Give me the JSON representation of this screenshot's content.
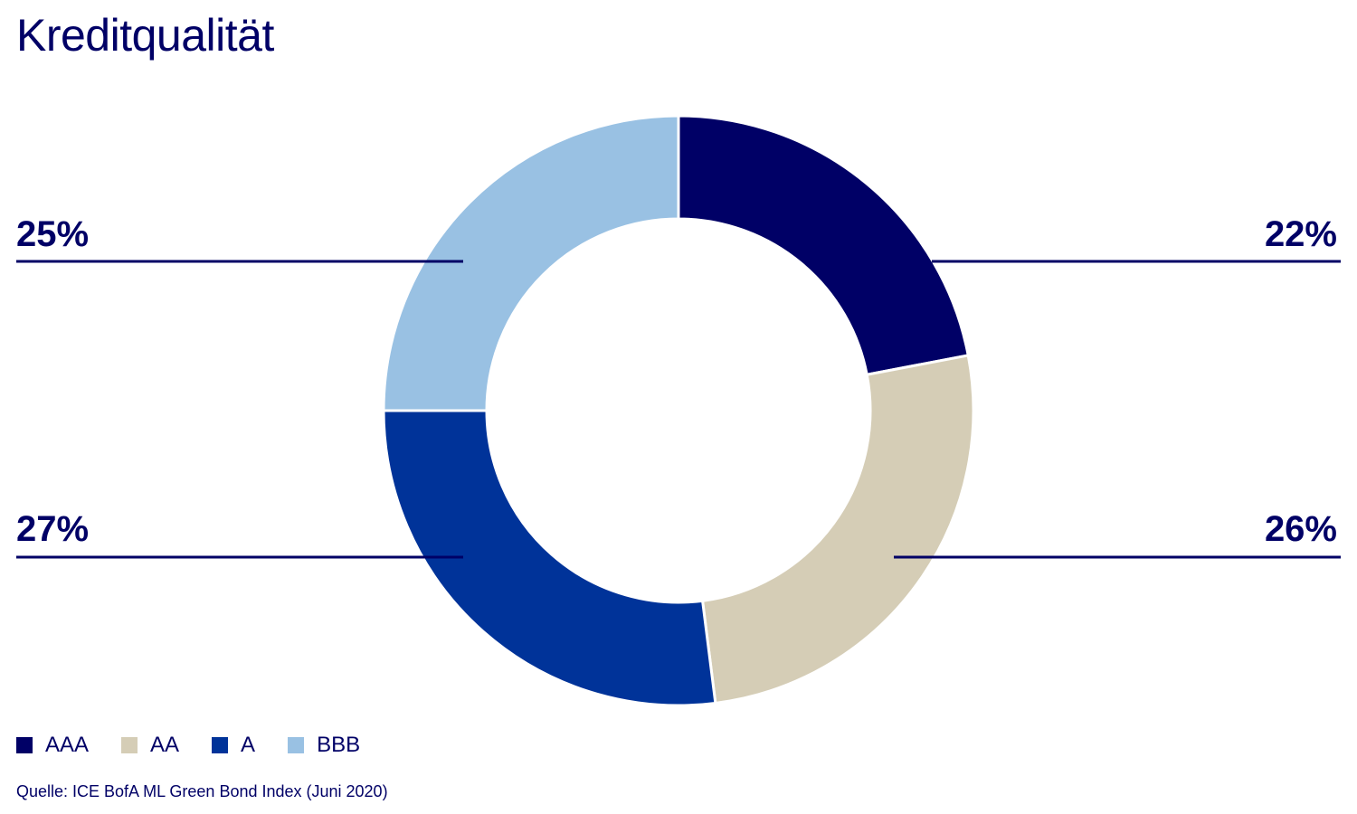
{
  "chart_data": {
    "type": "pie",
    "title": "Kreditqualität",
    "donut": true,
    "series": [
      {
        "name": "AAA",
        "value": 22,
        "label": "22%",
        "color": "#000066"
      },
      {
        "name": "AA",
        "value": 26,
        "label": "26%",
        "color": "#d5cdb6"
      },
      {
        "name": "A",
        "value": 27,
        "label": "27%",
        "color": "#003399"
      },
      {
        "name": "BBB",
        "value": 25,
        "label": "25%",
        "color": "#99c1e3"
      }
    ],
    "legend_position": "bottom-left",
    "source": "Quelle: ICE BofA ML Green Bond Index (Juni 2020)"
  }
}
